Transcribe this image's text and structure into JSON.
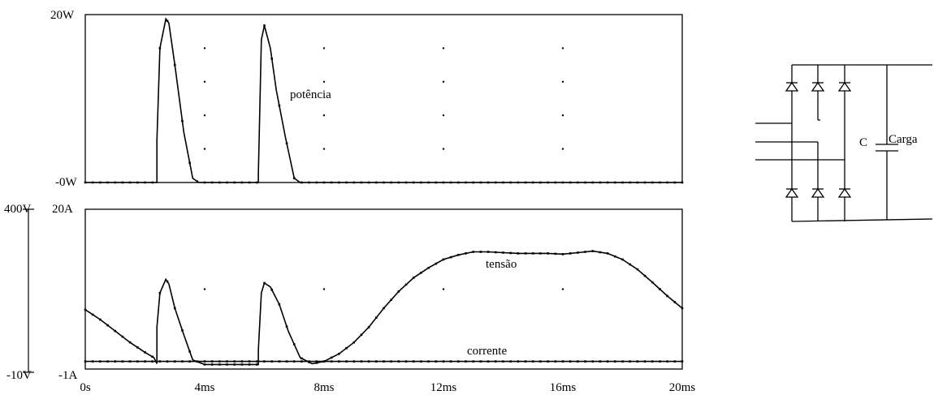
{
  "chart_data": [
    {
      "type": "line",
      "x_unit": "ms",
      "xlim": [
        0,
        20
      ],
      "ylim": [
        0,
        20
      ],
      "y_ticks": [
        "20W",
        "-0W"
      ],
      "x_ticks": [
        "0s",
        "4ms",
        "8ms",
        "12ms",
        "16ms",
        "20ms"
      ],
      "grid": "dots",
      "series": [
        {
          "name": "potência",
          "color": "#000000",
          "x": [
            0,
            2.4,
            2.4,
            2.5,
            2.7,
            2.8,
            3.0,
            3.3,
            3.6,
            3.8,
            5.8,
            5.8,
            5.9,
            6.0,
            6.2,
            6.4,
            6.7,
            7.0,
            7.2,
            20
          ],
          "y": [
            0,
            0,
            5,
            16,
            19.5,
            19,
            14,
            6,
            0.5,
            0,
            0,
            1,
            17,
            18.7,
            16,
            11,
            5.5,
            0.5,
            0,
            0
          ]
        }
      ]
    },
    {
      "type": "line",
      "x_unit": "ms",
      "xlim": [
        0,
        20
      ],
      "y_ticks_left": [
        "400V",
        "-10V"
      ],
      "y_ticks_right": [
        "20A",
        "-1A"
      ],
      "x_ticks": [
        "0s",
        "4ms",
        "8ms",
        "12ms",
        "16ms",
        "20ms"
      ],
      "grid": "dots",
      "series": [
        {
          "name": "tensão",
          "axis": "A",
          "ylim": [
            -1,
            20
          ],
          "x": [
            0,
            0.5,
            1.0,
            1.5,
            2.0,
            2.3,
            2.4,
            2.4,
            2.5,
            2.7,
            2.8,
            3.0,
            3.3,
            3.6,
            4.0,
            5.8,
            5.8,
            5.9,
            6.0,
            6.2,
            6.5,
            6.8,
            7.2,
            7.6,
            8.0,
            8.5,
            9.0,
            9.5,
            10.0,
            10.5,
            11.0,
            11.5,
            12.0,
            12.5,
            13.0,
            13.5,
            14.0,
            14.5,
            15.0,
            15.5,
            16.0,
            16.5,
            17.0,
            17.5,
            18.0,
            18.5,
            19.0,
            19.5,
            20.0
          ],
          "y": [
            6.8,
            5.5,
            4.0,
            2.5,
            1.2,
            0.5,
            -0.3,
            4.5,
            9.0,
            10.8,
            10.2,
            7.0,
            3.5,
            0.2,
            -0.4,
            -0.4,
            1.5,
            9.0,
            10.3,
            9.8,
            7.5,
            4.0,
            0.5,
            -0.3,
            0.0,
            1.0,
            2.5,
            4.5,
            7.0,
            9.2,
            11.0,
            12.3,
            13.4,
            14.0,
            14.4,
            14.4,
            14.3,
            14.2,
            14.2,
            14.2,
            14.1,
            14.3,
            14.5,
            14.2,
            13.4,
            12.1,
            10.4,
            8.6,
            7.0
          ]
        },
        {
          "name": "corrente",
          "axis": "A",
          "ylim": [
            -1,
            20
          ],
          "x": [
            0,
            20
          ],
          "y": [
            0,
            0
          ]
        }
      ]
    }
  ],
  "circuit": {
    "capacitor_label": "C",
    "load_label": "Carga"
  }
}
